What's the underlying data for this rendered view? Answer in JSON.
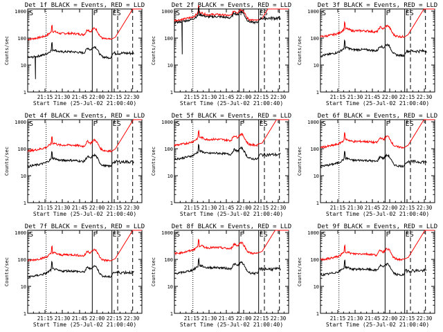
{
  "chart_data": {
    "type": "line",
    "shared": {
      "xlabel": "Start Time (25-Jul-02 21:00:40)",
      "ylabel": "Counts/sec",
      "x_tick_labels": [
        "21:15",
        "21:30",
        "21:45",
        "22:00",
        "22:15",
        "22:30"
      ],
      "x_tick_minutes": [
        15,
        30,
        45,
        60,
        75,
        90
      ],
      "xlim_minutes": [
        0,
        99
      ],
      "y_tick_labels": [
        "1",
        "10",
        "100",
        "1000"
      ],
      "y_tick_values": [
        1,
        10,
        100,
        1000
      ],
      "ylim": [
        1,
        1200
      ],
      "y_scale": "log",
      "series_names": [
        "Events",
        "LLD"
      ],
      "series_colors": {
        "Events": "#000000",
        "LLD": "#ff0000"
      },
      "marker_labels": {
        "start": "S",
        "flare": "F",
        "end": "ES"
      },
      "marker_minutes": {
        "dotted": 16,
        "flare": 56,
        "solid2": 73,
        "dashed1": 78,
        "dashed2": 91
      }
    },
    "panels": [
      {
        "title": "Det 1f BLACK = Events, RED = LLD",
        "events_base": 25,
        "lld_base": 120,
        "flare_peak": 4,
        "spike_down": 3
      },
      {
        "title": "Det 2f BLACK = Events, RED = LLD",
        "events_base": 500,
        "lld_base": 600,
        "flare_peak": 1.4,
        "spike_down": 25
      },
      {
        "title": "Det 3f BLACK = Events, RED = LLD",
        "events_base": 30,
        "lld_base": 150,
        "flare_peak": 4,
        "spike_down": 0
      },
      {
        "title": "Det 4f BLACK = Events, RED = LLD",
        "events_base": 30,
        "lld_base": 110,
        "flare_peak": 4,
        "spike_down": 0
      },
      {
        "title": "Det 5f BLACK = Events, RED = LLD",
        "events_base": 55,
        "lld_base": 180,
        "flare_peak": 3,
        "spike_down": 0
      },
      {
        "title": "Det 6f BLACK = Events, RED = LLD",
        "events_base": 30,
        "lld_base": 150,
        "flare_peak": 4,
        "spike_down": 0
      },
      {
        "title": "Det 7f BLACK = Events, RED = LLD",
        "events_base": 30,
        "lld_base": 120,
        "flare_peak": 3,
        "spike_down": 0
      },
      {
        "title": "Det 8f BLACK = Events, RED = LLD",
        "events_base": 40,
        "lld_base": 220,
        "flare_peak": 3,
        "spike_down": 0
      },
      {
        "title": "Det 9f BLACK = Events, RED = LLD",
        "events_base": 35,
        "lld_base": 130,
        "flare_peak": 4,
        "spike_down": 0
      }
    ]
  }
}
